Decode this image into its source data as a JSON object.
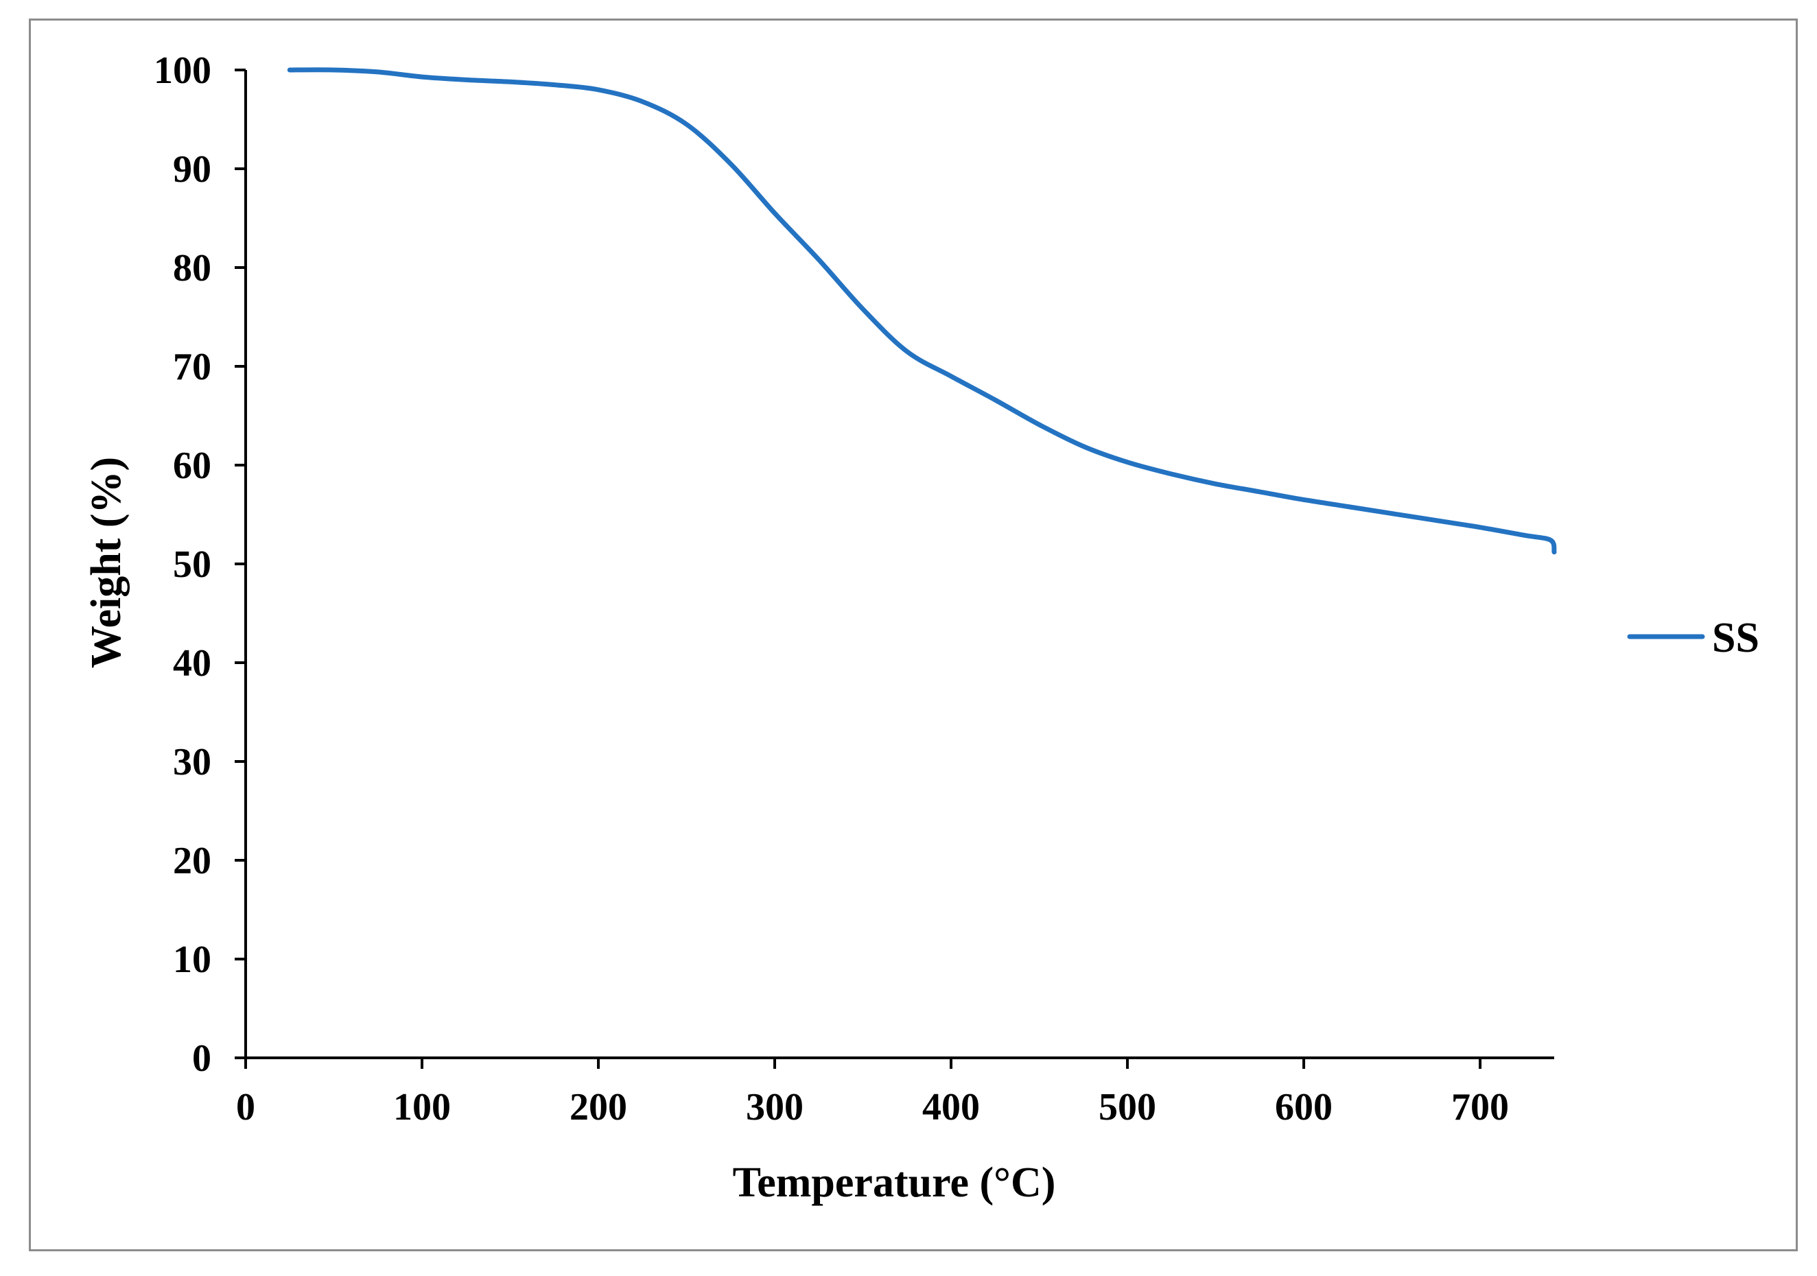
{
  "chart_data": {
    "type": "line",
    "title": "",
    "xlabel": "Temperature (°C)",
    "ylabel": "Weight (%)",
    "xlim": [
      0,
      742
    ],
    "ylim": [
      0,
      100
    ],
    "xticks": [
      0,
      100,
      200,
      300,
      400,
      500,
      600,
      700
    ],
    "yticks": [
      0,
      10,
      20,
      30,
      40,
      50,
      60,
      70,
      80,
      90,
      100
    ],
    "grid": false,
    "legend_position": "right",
    "series": [
      {
        "name": "SS",
        "color": "#2473c2",
        "x": [
          25,
          50,
          75,
          100,
          125,
          150,
          175,
          200,
          225,
          250,
          275,
          300,
          325,
          350,
          375,
          400,
          425,
          450,
          475,
          500,
          525,
          550,
          575,
          600,
          625,
          650,
          675,
          700,
          725,
          740,
          742
        ],
        "y": [
          100,
          100,
          99.8,
          99.3,
          99.0,
          98.8,
          98.5,
          98.0,
          96.8,
          94.5,
          90.5,
          85.5,
          80.8,
          75.8,
          71.5,
          69.0,
          66.6,
          64.1,
          61.9,
          60.3,
          59.1,
          58.1,
          57.3,
          56.5,
          55.8,
          55.1,
          54.4,
          53.7,
          52.9,
          52.4,
          51.2
        ]
      }
    ]
  }
}
